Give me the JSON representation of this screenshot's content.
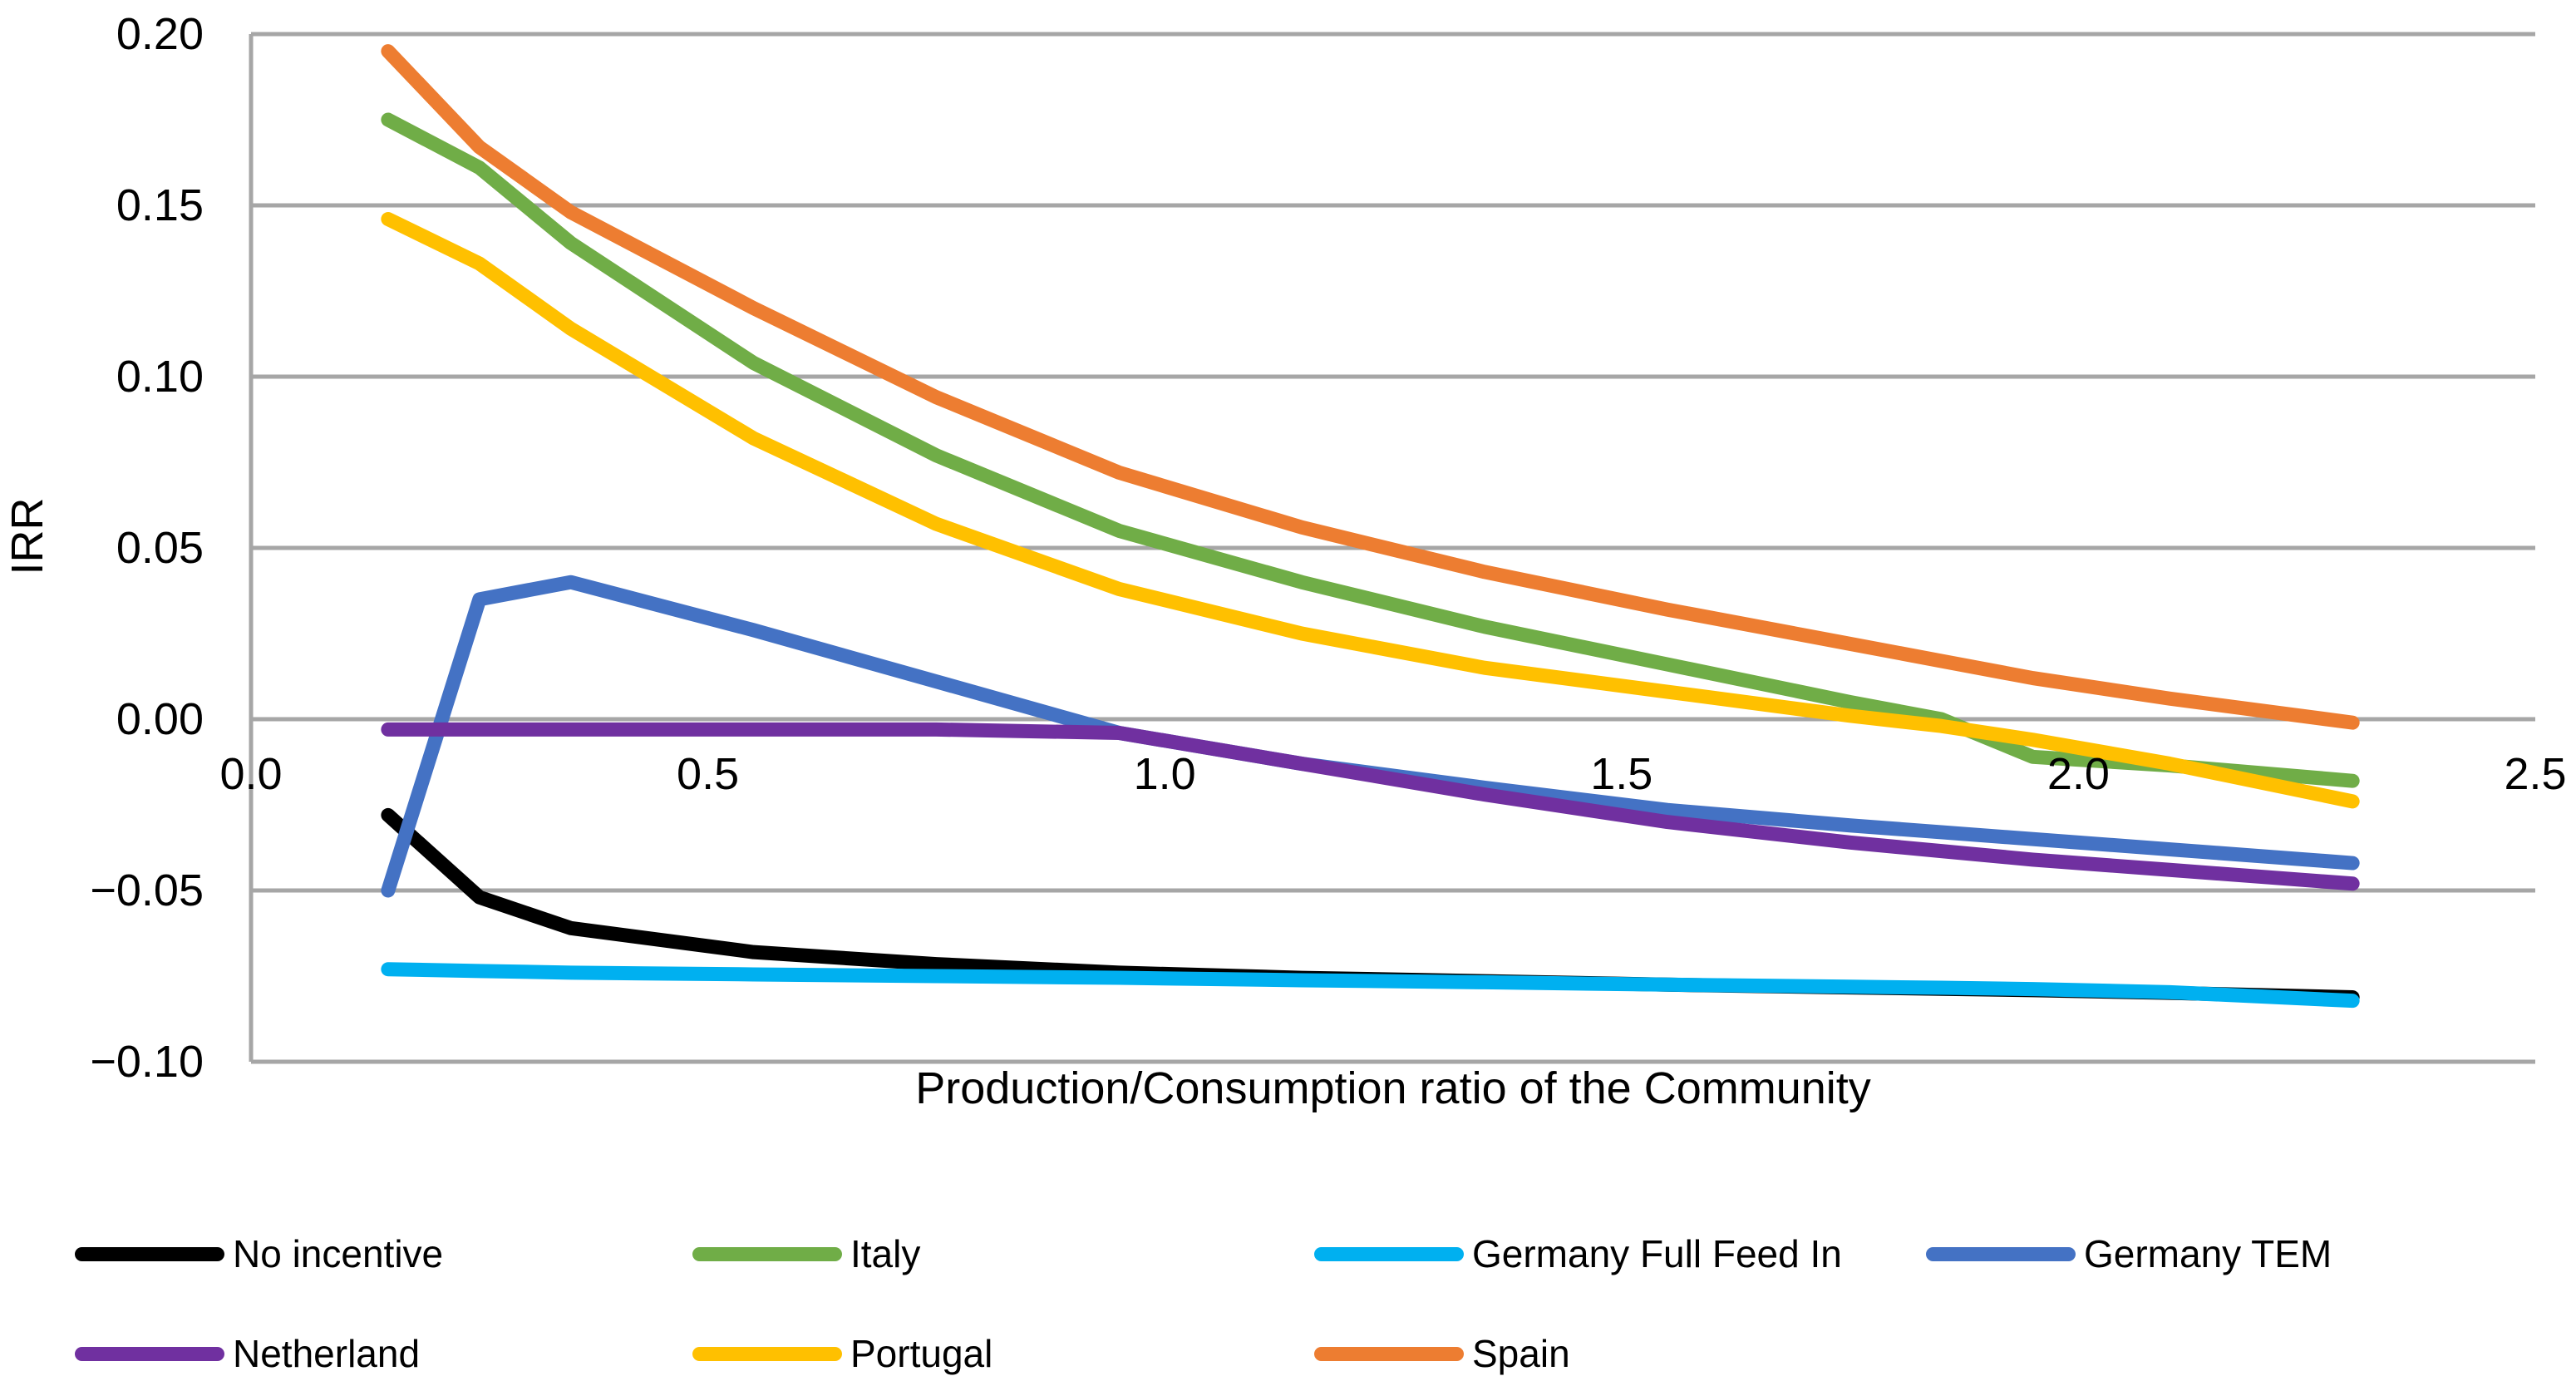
{
  "chart_data": {
    "type": "line",
    "title": "",
    "xlabel": "Production/Consumption ratio of the Community",
    "ylabel": "IRR",
    "xlim": [
      0,
      2.5
    ],
    "ylim": [
      -0.1,
      0.2
    ],
    "grid": true,
    "legend_position": "bottom",
    "x_ticks": [
      {
        "label": "0.0",
        "value": 0.0
      },
      {
        "label": "0.5",
        "value": 0.5
      },
      {
        "label": "1.0",
        "value": 1.0
      },
      {
        "label": "1.5",
        "value": 1.5
      },
      {
        "label": "2.0",
        "value": 2.0
      },
      {
        "label": "2.5",
        "value": 2.5
      }
    ],
    "y_ticks": [
      {
        "label": "0.20",
        "value": 0.2
      },
      {
        "label": "0.15",
        "value": 0.15
      },
      {
        "label": "0.10",
        "value": 0.1
      },
      {
        "label": "0.05",
        "value": 0.05
      },
      {
        "label": "0.00",
        "value": 0.0
      },
      {
        "label": "−0.05",
        "value": -0.05
      },
      {
        "label": "−0.10",
        "value": -0.1
      }
    ],
    "x": [
      0.15,
      0.25,
      0.35,
      0.55,
      0.75,
      0.95,
      1.15,
      1.35,
      1.55,
      1.75,
      1.85,
      1.95,
      2.1,
      2.3
    ],
    "series": [
      {
        "name": "No incentive",
        "color": "#000000",
        "values": [
          -0.028,
          -0.052,
          -0.061,
          -0.068,
          -0.0715,
          -0.074,
          -0.0755,
          -0.0765,
          -0.0775,
          -0.0783,
          -0.0787,
          -0.0791,
          -0.0799,
          -0.0812
        ]
      },
      {
        "name": "Italy",
        "color": "#70AD47",
        "values": [
          0.175,
          0.161,
          0.139,
          0.104,
          0.077,
          0.055,
          0.04,
          0.027,
          0.016,
          0.005,
          0.0,
          -0.011,
          -0.0135,
          -0.018
        ]
      },
      {
        "name": "Germany Full Feed In",
        "color": "#00B0F0",
        "values": [
          -0.073,
          -0.0735,
          -0.074,
          -0.0745,
          -0.075,
          -0.0755,
          -0.0762,
          -0.0768,
          -0.0775,
          -0.0781,
          -0.0784,
          -0.0788,
          -0.0797,
          -0.0822
        ]
      },
      {
        "name": "Germany TEM",
        "color": "#4472C4",
        "values": [
          -0.05,
          0.035,
          0.04,
          0.026,
          0.011,
          -0.004,
          -0.013,
          -0.02,
          -0.0265,
          -0.031,
          -0.033,
          -0.035,
          -0.038,
          -0.042
        ]
      },
      {
        "name": "Netherland",
        "color": "#7030A0",
        "values": [
          -0.003,
          -0.003,
          -0.003,
          -0.003,
          -0.003,
          -0.004,
          -0.013,
          -0.022,
          -0.03,
          -0.036,
          -0.0385,
          -0.041,
          -0.044,
          -0.048
        ]
      },
      {
        "name": "Portugal",
        "color": "#FFC000",
        "values": [
          0.146,
          0.133,
          0.114,
          0.082,
          0.057,
          0.038,
          0.025,
          0.015,
          0.008,
          0.001,
          -0.002,
          -0.006,
          -0.013,
          -0.024
        ]
      },
      {
        "name": "Spain",
        "color": "#ED7D31",
        "values": [
          0.195,
          0.167,
          0.148,
          0.12,
          0.094,
          0.072,
          0.056,
          0.043,
          0.032,
          0.022,
          0.017,
          0.012,
          0.006,
          -0.001
        ]
      }
    ],
    "colors": {
      "gridline": "#A6A6A6",
      "axis_border": "#A6A6A6",
      "text": "#000000",
      "background": "#FFFFFF"
    }
  }
}
